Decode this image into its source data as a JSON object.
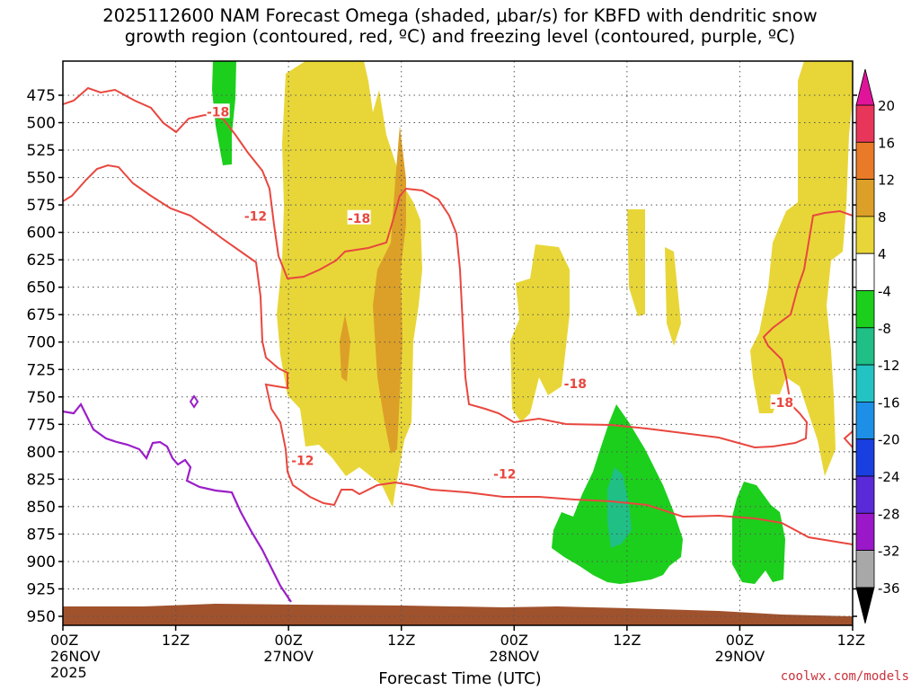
{
  "title_line1": "2025112600 NAM Forecast Omega (shaded, μbar/s) for KBFD with dendritic snow",
  "title_line2": "growth region (contoured, red, ºC) and freezing level (contoured, purple, ºC)",
  "credit": "coolwx.com/models",
  "chart_data": {
    "type": "heatmap",
    "title": "2025112600 NAM Forecast Omega (shaded, μbar/s) for KBFD with dendritic snow growth region (contoured, red, ºC) and freezing level (contoured, purple, ºC)",
    "xlabel": "Forecast Time (UTC)",
    "ylabel": "",
    "y_axis": {
      "ticks": [
        "475",
        "500",
        "525",
        "550",
        "575",
        "600",
        "625",
        "650",
        "675",
        "700",
        "725",
        "750",
        "775",
        "800",
        "825",
        "850",
        "875",
        "900",
        "925",
        "950"
      ],
      "reversed": true
    },
    "x_axis": {
      "ticks": [
        {
          "hour": 0,
          "label": "00Z",
          "sub1": "26NOV",
          "sub2": "2025"
        },
        {
          "hour": 12,
          "label": "12Z",
          "sub1": "",
          "sub2": ""
        },
        {
          "hour": 24,
          "label": "00Z",
          "sub1": "27NOV",
          "sub2": ""
        },
        {
          "hour": 36,
          "label": "12Z",
          "sub1": "",
          "sub2": ""
        },
        {
          "hour": 48,
          "label": "00Z",
          "sub1": "28NOV",
          "sub2": ""
        },
        {
          "hour": 60,
          "label": "12Z",
          "sub1": "",
          "sub2": ""
        },
        {
          "hour": 72,
          "label": "00Z",
          "sub1": "29NOV",
          "sub2": ""
        },
        {
          "hour": 84,
          "label": "12Z",
          "sub1": "",
          "sub2": ""
        }
      ],
      "range": [
        0,
        84
      ]
    },
    "grid": true,
    "colorbar": {
      "labels": [
        "20",
        "16",
        "12",
        "8",
        "4",
        "-4",
        "-8",
        "-12",
        "-16",
        "-20",
        "-24",
        "-28",
        "-32",
        "-36"
      ],
      "colors": [
        "#e8365a",
        "#e87a28",
        "#dca028",
        "#e8d638",
        "#ffffff",
        "#1ccf1c",
        "#1fbf86",
        "#24c3c3",
        "#1e8fe6",
        "#1a3fe0",
        "#5a2ad8",
        "#9a18c8",
        "#a8a8a8"
      ],
      "top_color": "#e0149a",
      "bottom_color": "#000000"
    },
    "contour_labels": [
      {
        "text": "-18",
        "series": "dgz",
        "hour": 16.5,
        "p": 490
      },
      {
        "text": "-12",
        "series": "dgz",
        "hour": 20.5,
        "p": 585
      },
      {
        "text": "-18",
        "series": "dgz",
        "hour": 31.5,
        "p": 587
      },
      {
        "text": "-18",
        "series": "dgz",
        "hour": 54.5,
        "p": 738
      },
      {
        "text": "-18",
        "series": "dgz",
        "hour": 76.5,
        "p": 755
      },
      {
        "text": "-12",
        "series": "dgz",
        "hour": 25.5,
        "p": 808
      },
      {
        "text": "-12",
        "series": "dgz",
        "hour": 47.0,
        "p": 820
      }
    ]
  }
}
